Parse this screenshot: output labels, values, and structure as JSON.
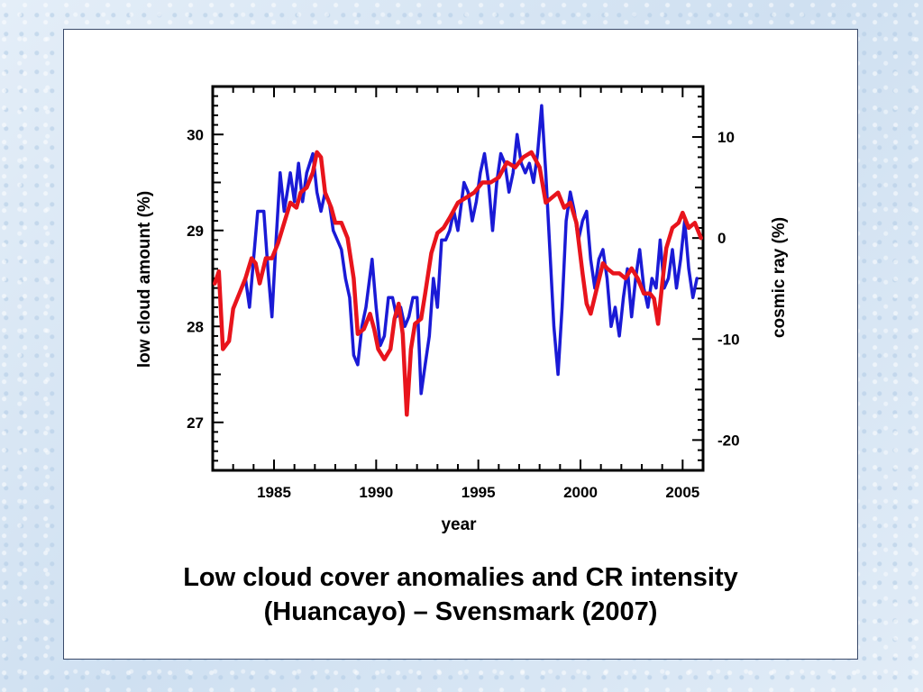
{
  "slide": {
    "caption_line1": "Low cloud cover anomalies and CR intensity",
    "caption_line2": "(Huancayo) – Svensmark (2007)",
    "background_color": "#d6e6f5"
  },
  "chart_data": {
    "type": "line",
    "xlabel": "year",
    "ylabel_left": "low cloud amount (%)",
    "ylabel_right": "cosmic ray (%)",
    "xlim": [
      1982,
      2006
    ],
    "ylim_left": [
      26.5,
      30.5
    ],
    "ylim_right": [
      -23,
      15
    ],
    "x_ticks": [
      1985,
      1990,
      1995,
      2000,
      2005
    ],
    "y_left_ticks": [
      27,
      28,
      29,
      30
    ],
    "y_right_ticks": [
      10,
      0,
      -10,
      -20
    ],
    "series": [
      {
        "color": "#1a1ad6",
        "axis": "left",
        "points": [
          [
            1983.6,
            28.5
          ],
          [
            1983.8,
            28.2
          ],
          [
            1984.0,
            28.7
          ],
          [
            1984.2,
            29.2
          ],
          [
            1984.5,
            29.2
          ],
          [
            1984.7,
            28.6
          ],
          [
            1984.9,
            28.1
          ],
          [
            1985.1,
            28.9
          ],
          [
            1985.3,
            29.6
          ],
          [
            1985.5,
            29.2
          ],
          [
            1985.8,
            29.6
          ],
          [
            1986.0,
            29.3
          ],
          [
            1986.2,
            29.7
          ],
          [
            1986.4,
            29.3
          ],
          [
            1986.6,
            29.6
          ],
          [
            1986.9,
            29.8
          ],
          [
            1987.1,
            29.4
          ],
          [
            1987.3,
            29.2
          ],
          [
            1987.5,
            29.4
          ],
          [
            1987.7,
            29.3
          ],
          [
            1987.9,
            29.0
          ],
          [
            1988.1,
            28.9
          ],
          [
            1988.3,
            28.8
          ],
          [
            1988.5,
            28.5
          ],
          [
            1988.7,
            28.3
          ],
          [
            1988.9,
            27.7
          ],
          [
            1989.1,
            27.6
          ],
          [
            1989.3,
            28.0
          ],
          [
            1989.5,
            28.2
          ],
          [
            1989.8,
            28.7
          ],
          [
            1990.0,
            28.2
          ],
          [
            1990.2,
            27.8
          ],
          [
            1990.4,
            27.9
          ],
          [
            1990.6,
            28.3
          ],
          [
            1990.8,
            28.3
          ],
          [
            1991.0,
            28.1
          ],
          [
            1991.2,
            28.2
          ],
          [
            1991.4,
            28.0
          ],
          [
            1991.6,
            28.1
          ],
          [
            1991.8,
            28.3
          ],
          [
            1992.0,
            28.3
          ],
          [
            1992.2,
            27.3
          ],
          [
            1992.4,
            27.6
          ],
          [
            1992.6,
            27.9
          ],
          [
            1992.8,
            28.5
          ],
          [
            1993.0,
            28.2
          ],
          [
            1993.2,
            28.9
          ],
          [
            1993.4,
            28.9
          ],
          [
            1993.6,
            29.0
          ],
          [
            1993.8,
            29.2
          ],
          [
            1994.0,
            29.0
          ],
          [
            1994.3,
            29.5
          ],
          [
            1994.5,
            29.4
          ],
          [
            1994.7,
            29.1
          ],
          [
            1994.9,
            29.3
          ],
          [
            1995.1,
            29.6
          ],
          [
            1995.3,
            29.8
          ],
          [
            1995.5,
            29.5
          ],
          [
            1995.7,
            29.0
          ],
          [
            1995.9,
            29.5
          ],
          [
            1996.1,
            29.8
          ],
          [
            1996.3,
            29.7
          ],
          [
            1996.5,
            29.4
          ],
          [
            1996.7,
            29.6
          ],
          [
            1996.9,
            30.0
          ],
          [
            1997.1,
            29.7
          ],
          [
            1997.3,
            29.6
          ],
          [
            1997.5,
            29.7
          ],
          [
            1997.7,
            29.5
          ],
          [
            1997.9,
            29.8
          ],
          [
            1998.1,
            30.3
          ],
          [
            1998.3,
            29.6
          ],
          [
            1998.5,
            28.8
          ],
          [
            1998.7,
            28.0
          ],
          [
            1998.9,
            27.5
          ],
          [
            1999.1,
            28.2
          ],
          [
            1999.3,
            29.1
          ],
          [
            1999.5,
            29.4
          ],
          [
            1999.7,
            29.2
          ],
          [
            1999.9,
            28.9
          ],
          [
            2000.1,
            29.1
          ],
          [
            2000.3,
            29.2
          ],
          [
            2000.5,
            28.7
          ],
          [
            2000.7,
            28.4
          ],
          [
            2000.9,
            28.7
          ],
          [
            2001.1,
            28.8
          ],
          [
            2001.3,
            28.5
          ],
          [
            2001.5,
            28.0
          ],
          [
            2001.7,
            28.2
          ],
          [
            2001.9,
            27.9
          ],
          [
            2002.1,
            28.3
          ],
          [
            2002.3,
            28.6
          ],
          [
            2002.5,
            28.1
          ],
          [
            2002.7,
            28.5
          ],
          [
            2002.9,
            28.8
          ],
          [
            2003.1,
            28.4
          ],
          [
            2003.3,
            28.2
          ],
          [
            2003.5,
            28.5
          ],
          [
            2003.7,
            28.4
          ],
          [
            2003.9,
            28.9
          ],
          [
            2004.1,
            28.4
          ],
          [
            2004.3,
            28.5
          ],
          [
            2004.5,
            28.8
          ],
          [
            2004.7,
            28.4
          ],
          [
            2004.9,
            28.7
          ],
          [
            2005.1,
            29.1
          ],
          [
            2005.3,
            28.6
          ],
          [
            2005.5,
            28.3
          ],
          [
            2005.7,
            28.5
          ]
        ]
      },
      {
        "color": "#e8141c",
        "axis": "right",
        "points": [
          [
            1982.1,
            -4.5
          ],
          [
            1982.3,
            -3.3
          ],
          [
            1982.5,
            -11.0
          ],
          [
            1982.8,
            -10.2
          ],
          [
            1983.0,
            -7.0
          ],
          [
            1983.3,
            -5.5
          ],
          [
            1983.6,
            -4.0
          ],
          [
            1983.9,
            -2.0
          ],
          [
            1984.1,
            -2.5
          ],
          [
            1984.3,
            -4.5
          ],
          [
            1984.6,
            -2.0
          ],
          [
            1984.9,
            -2.0
          ],
          [
            1985.2,
            -0.5
          ],
          [
            1985.5,
            1.5
          ],
          [
            1985.8,
            3.5
          ],
          [
            1986.1,
            3.0
          ],
          [
            1986.3,
            4.5
          ],
          [
            1986.6,
            5.0
          ],
          [
            1986.9,
            6.5
          ],
          [
            1987.1,
            8.5
          ],
          [
            1987.3,
            8.0
          ],
          [
            1987.5,
            4.5
          ],
          [
            1987.8,
            3.0
          ],
          [
            1988.0,
            1.5
          ],
          [
            1988.3,
            1.5
          ],
          [
            1988.6,
            0.0
          ],
          [
            1988.9,
            -4.0
          ],
          [
            1989.1,
            -9.5
          ],
          [
            1989.4,
            -9.0
          ],
          [
            1989.7,
            -7.5
          ],
          [
            1989.9,
            -9.0
          ],
          [
            1990.1,
            -11.0
          ],
          [
            1990.4,
            -12.0
          ],
          [
            1990.7,
            -11.0
          ],
          [
            1990.9,
            -8.0
          ],
          [
            1991.1,
            -6.5
          ],
          [
            1991.3,
            -9.5
          ],
          [
            1991.5,
            -17.5
          ],
          [
            1991.7,
            -11.0
          ],
          [
            1991.9,
            -8.5
          ],
          [
            1992.2,
            -8.0
          ],
          [
            1992.4,
            -5.5
          ],
          [
            1992.7,
            -1.5
          ],
          [
            1993.0,
            0.5
          ],
          [
            1993.3,
            1.0
          ],
          [
            1993.6,
            2.0
          ],
          [
            1994.0,
            3.5
          ],
          [
            1994.4,
            4.0
          ],
          [
            1994.8,
            4.5
          ],
          [
            1995.2,
            5.5
          ],
          [
            1995.6,
            5.5
          ],
          [
            1996.0,
            6.0
          ],
          [
            1996.4,
            7.5
          ],
          [
            1996.8,
            7.0
          ],
          [
            1997.2,
            8.0
          ],
          [
            1997.6,
            8.5
          ],
          [
            1998.0,
            7.0
          ],
          [
            1998.3,
            3.5
          ],
          [
            1998.6,
            4.0
          ],
          [
            1998.9,
            4.5
          ],
          [
            1999.2,
            3.0
          ],
          [
            1999.5,
            3.5
          ],
          [
            1999.8,
            1.5
          ],
          [
            2000.1,
            -3.5
          ],
          [
            2000.3,
            -6.5
          ],
          [
            2000.5,
            -7.5
          ],
          [
            2000.8,
            -5.0
          ],
          [
            2001.1,
            -2.5
          ],
          [
            2001.3,
            -3.0
          ],
          [
            2001.6,
            -3.5
          ],
          [
            2001.9,
            -3.5
          ],
          [
            2002.2,
            -4.0
          ],
          [
            2002.5,
            -3.0
          ],
          [
            2002.8,
            -4.0
          ],
          [
            2003.1,
            -5.5
          ],
          [
            2003.4,
            -5.5
          ],
          [
            2003.6,
            -6.0
          ],
          [
            2003.8,
            -8.5
          ],
          [
            2004.0,
            -4.5
          ],
          [
            2004.2,
            -1.0
          ],
          [
            2004.5,
            1.0
          ],
          [
            2004.8,
            1.5
          ],
          [
            2005.0,
            2.5
          ],
          [
            2005.3,
            1.0
          ],
          [
            2005.6,
            1.5
          ],
          [
            2005.9,
            0.0
          ]
        ]
      }
    ]
  }
}
